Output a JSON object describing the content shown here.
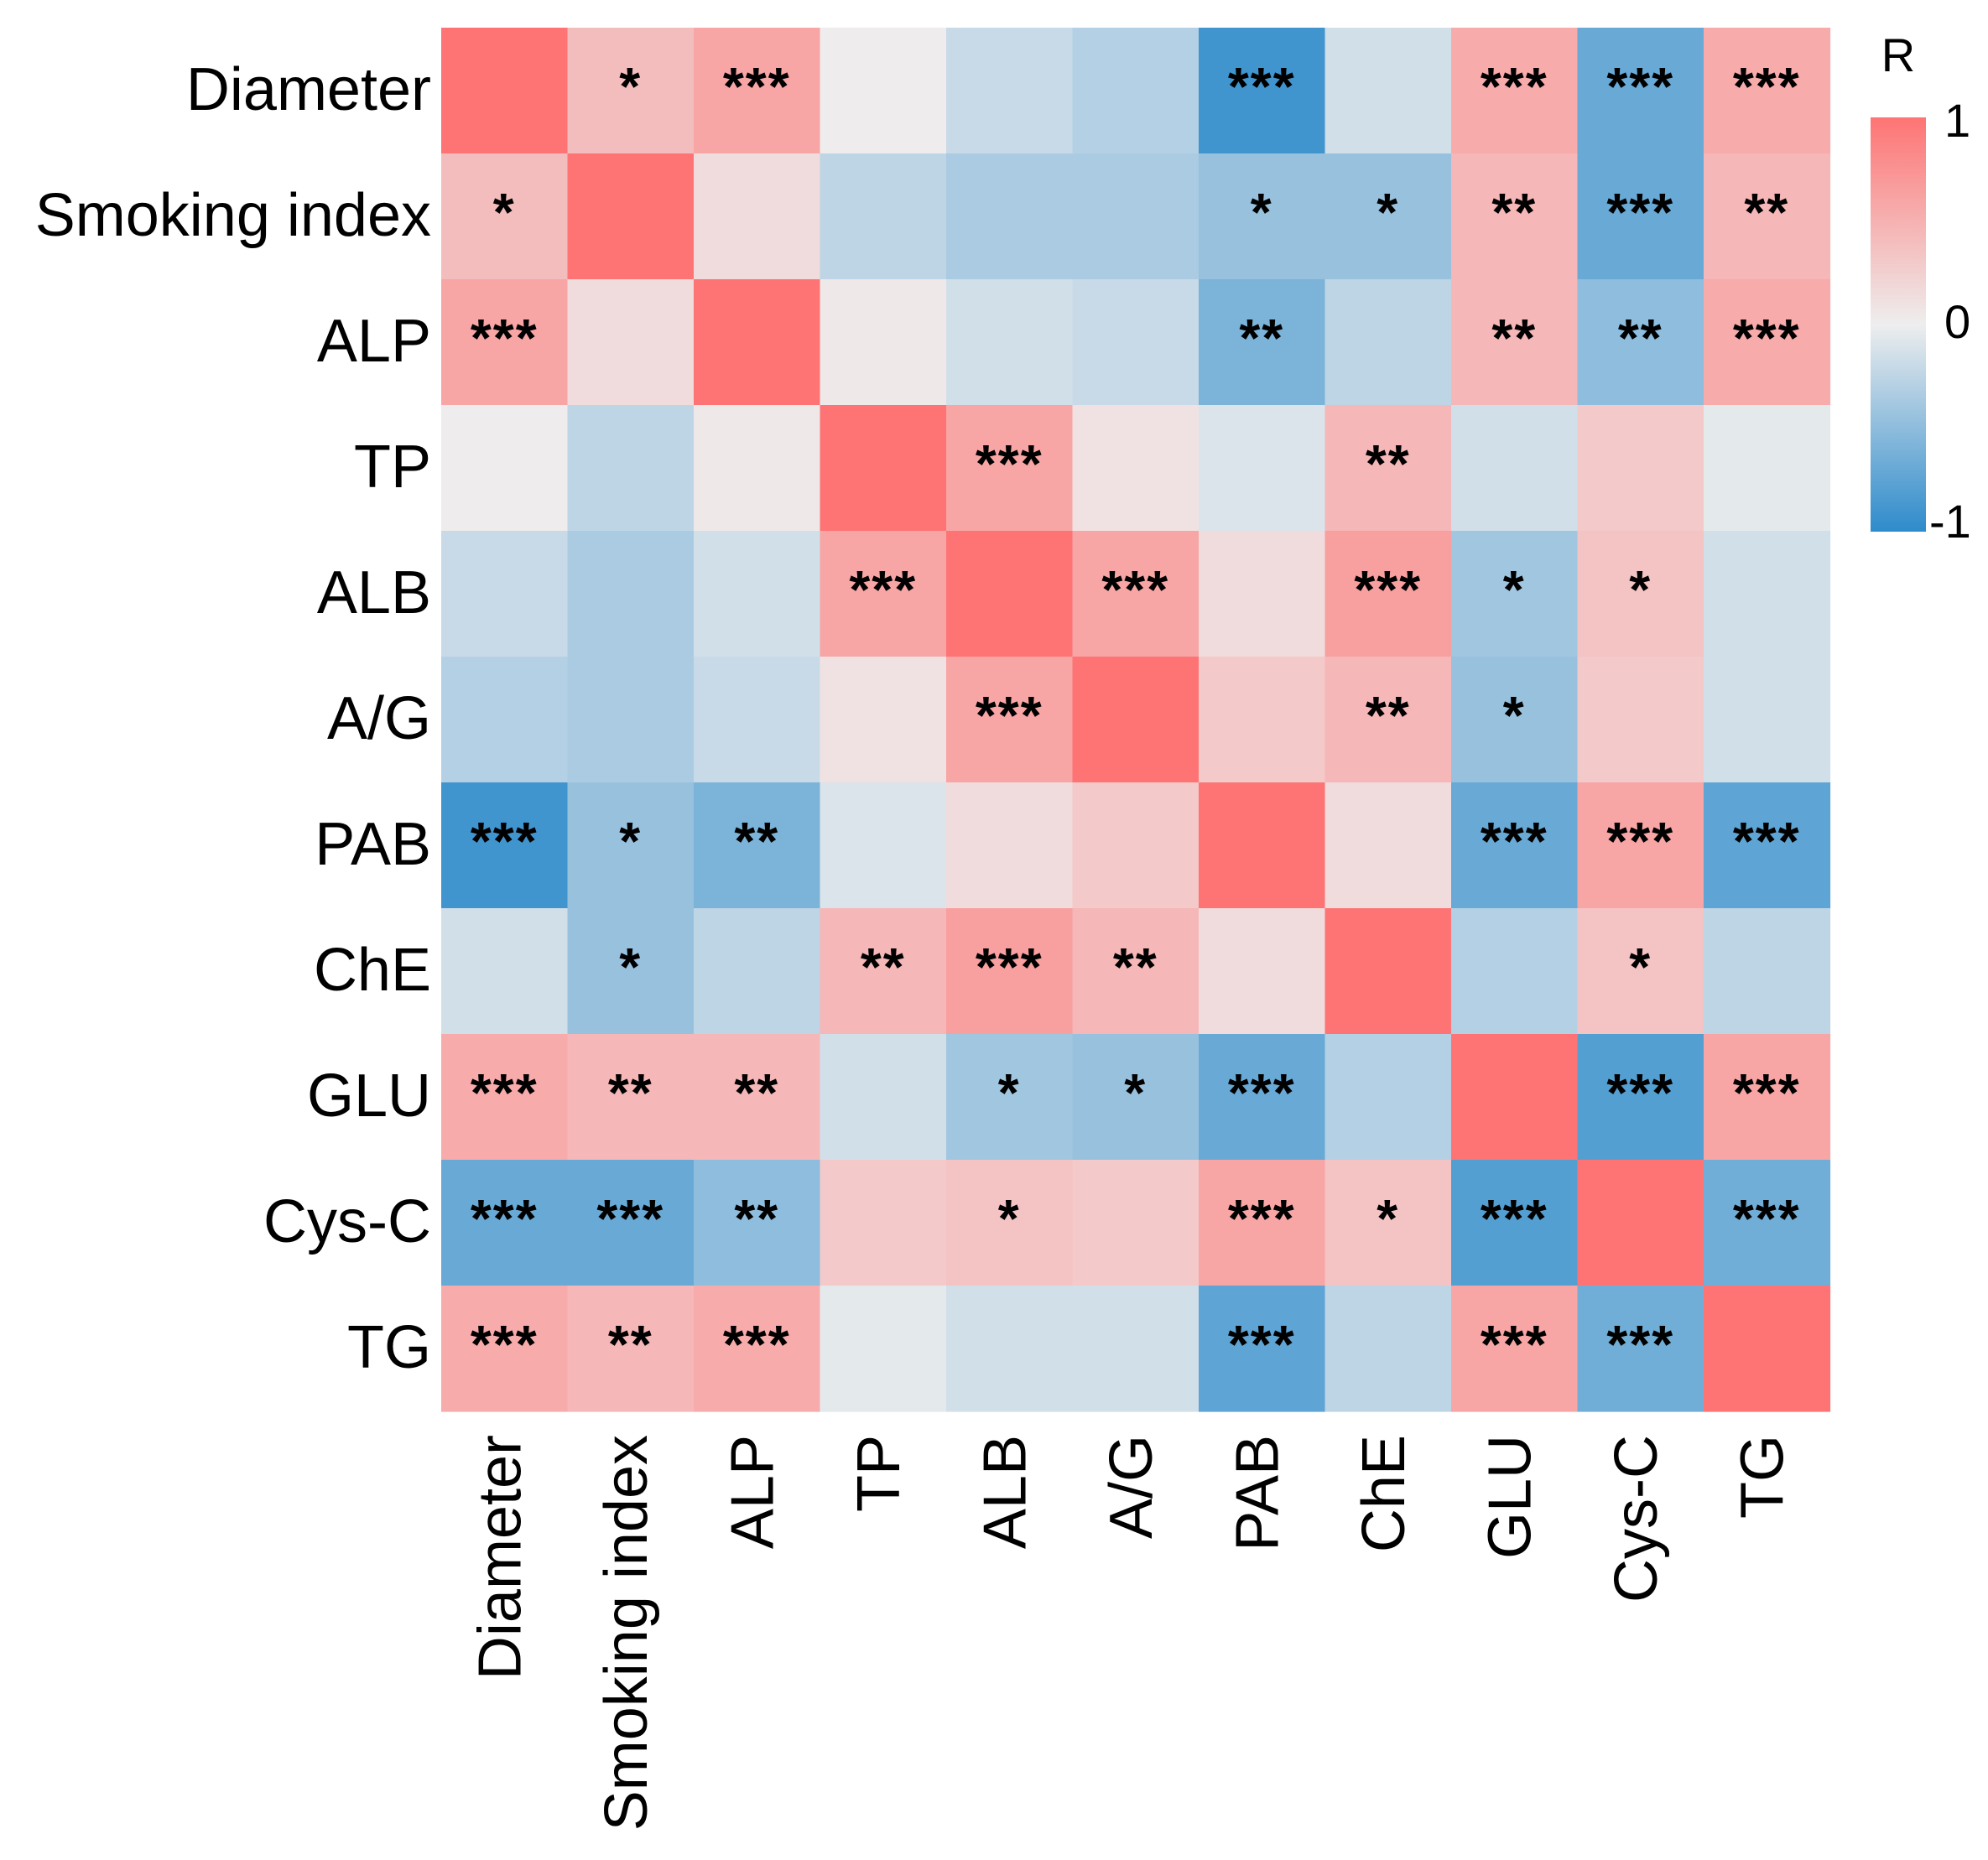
{
  "chart_data": {
    "type": "heatmap",
    "title": "",
    "xlabel": "",
    "ylabel": "",
    "row_labels": [
      "Diameter",
      "Smoking index",
      "ALP",
      "TP",
      "ALB",
      "A/G",
      "PAB",
      "ChE",
      "GLU",
      "Cys-C",
      "TG"
    ],
    "col_labels": [
      "Diameter",
      "Smoking index",
      "ALP",
      "TP",
      "ALB",
      "A/G",
      "PAB",
      "ChE",
      "GLU",
      "Cys-C",
      "TG"
    ],
    "values": [
      [
        1.0,
        0.4,
        0.6,
        0.02,
        -0.2,
        -0.3,
        -0.9,
        -0.15,
        0.55,
        -0.7,
        0.55
      ],
      [
        0.4,
        1.0,
        0.15,
        -0.25,
        -0.35,
        -0.35,
        -0.45,
        -0.45,
        0.45,
        -0.7,
        0.45
      ],
      [
        0.6,
        0.15,
        1.0,
        0.05,
        -0.15,
        -0.2,
        -0.6,
        -0.25,
        0.45,
        -0.5,
        0.55
      ],
      [
        0.02,
        -0.25,
        0.05,
        1.0,
        0.6,
        0.1,
        -0.1,
        0.45,
        -0.15,
        0.3,
        -0.05
      ],
      [
        -0.2,
        -0.35,
        -0.15,
        0.6,
        1.0,
        0.6,
        0.15,
        0.65,
        -0.4,
        0.35,
        -0.15
      ],
      [
        -0.3,
        -0.35,
        -0.2,
        0.1,
        0.6,
        1.0,
        0.3,
        0.45,
        -0.45,
        0.3,
        -0.15
      ],
      [
        -0.9,
        -0.45,
        -0.6,
        -0.1,
        0.15,
        0.3,
        1.0,
        0.15,
        -0.7,
        0.6,
        -0.75
      ],
      [
        -0.15,
        -0.45,
        -0.25,
        0.45,
        0.65,
        0.45,
        0.15,
        1.0,
        -0.3,
        0.35,
        -0.25
      ],
      [
        0.55,
        0.45,
        0.45,
        -0.15,
        -0.4,
        -0.45,
        -0.7,
        -0.3,
        1.0,
        -0.8,
        0.6
      ],
      [
        -0.7,
        -0.7,
        -0.5,
        0.3,
        0.35,
        0.3,
        0.6,
        0.35,
        -0.8,
        1.0,
        -0.65
      ],
      [
        0.55,
        0.45,
        0.55,
        -0.05,
        -0.15,
        -0.15,
        -0.75,
        -0.25,
        0.6,
        -0.65,
        1.0
      ]
    ],
    "significance": [
      [
        "",
        "*",
        "***",
        "",
        "",
        "",
        "***",
        "",
        "***",
        "***",
        "***"
      ],
      [
        "*",
        "",
        "",
        "",
        "",
        "",
        "*",
        "*",
        "**",
        "***",
        "**"
      ],
      [
        "***",
        "",
        "",
        "",
        "",
        "",
        "**",
        "",
        "**",
        "**",
        "***"
      ],
      [
        "",
        "",
        "",
        "",
        "***",
        "",
        "",
        "**",
        "",
        "",
        ""
      ],
      [
        "",
        "",
        "",
        "***",
        "",
        "***",
        "",
        "***",
        "*",
        "*",
        ""
      ],
      [
        "",
        "",
        "",
        "",
        "***",
        "",
        "",
        "**",
        "*",
        "",
        ""
      ],
      [
        "***",
        "*",
        "**",
        "",
        "",
        "",
        "",
        "",
        "***",
        "***",
        "***"
      ],
      [
        "",
        "*",
        "",
        "**",
        "***",
        "**",
        "",
        "",
        "",
        "*",
        ""
      ],
      [
        "***",
        "**",
        "**",
        "",
        "*",
        "*",
        "***",
        "",
        "",
        "***",
        "***"
      ],
      [
        "***",
        "***",
        "**",
        "",
        "*",
        "",
        "***",
        "*",
        "***",
        "",
        "***"
      ],
      [
        "***",
        "**",
        "***",
        "",
        "",
        "",
        "***",
        "",
        "***",
        "***",
        ""
      ]
    ],
    "colorscale": {
      "min": -1,
      "mid": 0,
      "max": 1,
      "low_color": "#2E8BCB",
      "mid_color": "#EEEEEE",
      "high_color": "#FE7474"
    },
    "legend": {
      "title": "R",
      "ticks": [
        "1",
        "0",
        "-1"
      ],
      "tick_values": [
        1,
        0,
        -1
      ],
      "placement": "right"
    }
  }
}
